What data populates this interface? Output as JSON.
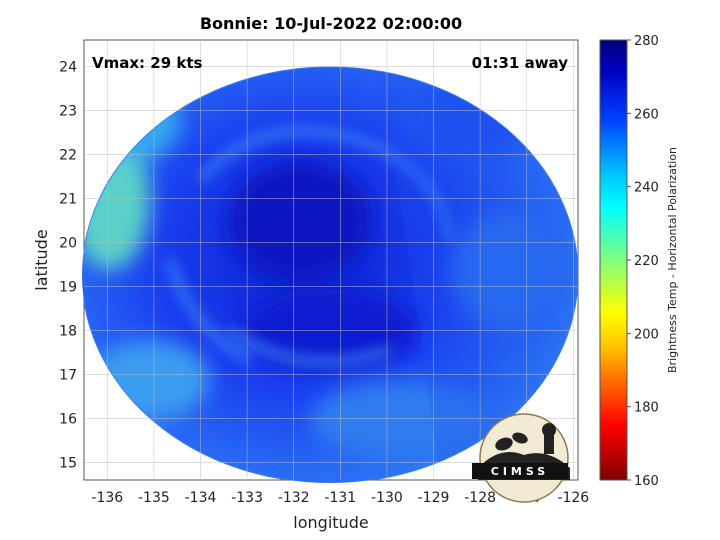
{
  "title": "Bonnie: 10-Jul-2022 02:00:00",
  "vmax_label": "Vmax: 29 kts",
  "time_label": "01:31 away",
  "xlabel": "longitude",
  "ylabel": "latitude",
  "colorbar": {
    "label": "Brightness Temp - Horizontal Polarization",
    "min": 160,
    "max": 280,
    "ticks": [
      "160",
      "180",
      "200",
      "220",
      "240",
      "260",
      "280"
    ],
    "colors": [
      "#7f0000",
      "#ff0000",
      "#ffbf00",
      "#ffff00",
      "#7fff7f",
      "#00ffff",
      "#00bfff",
      "#0040ff",
      "#0000c0",
      "#00007f"
    ]
  },
  "axes": {
    "x_ticks": [
      "-136",
      "-135",
      "-134",
      "-133",
      "-132",
      "-131",
      "-130",
      "-129",
      "-128",
      "-127",
      "-126"
    ],
    "y_ticks": [
      "15",
      "16",
      "17",
      "18",
      "19",
      "20",
      "21",
      "22",
      "23",
      "24"
    ],
    "xlim": [
      -136.5,
      -125.9
    ],
    "ylim": [
      14.6,
      24.6
    ]
  },
  "logo": {
    "text": "CIMSS"
  }
}
